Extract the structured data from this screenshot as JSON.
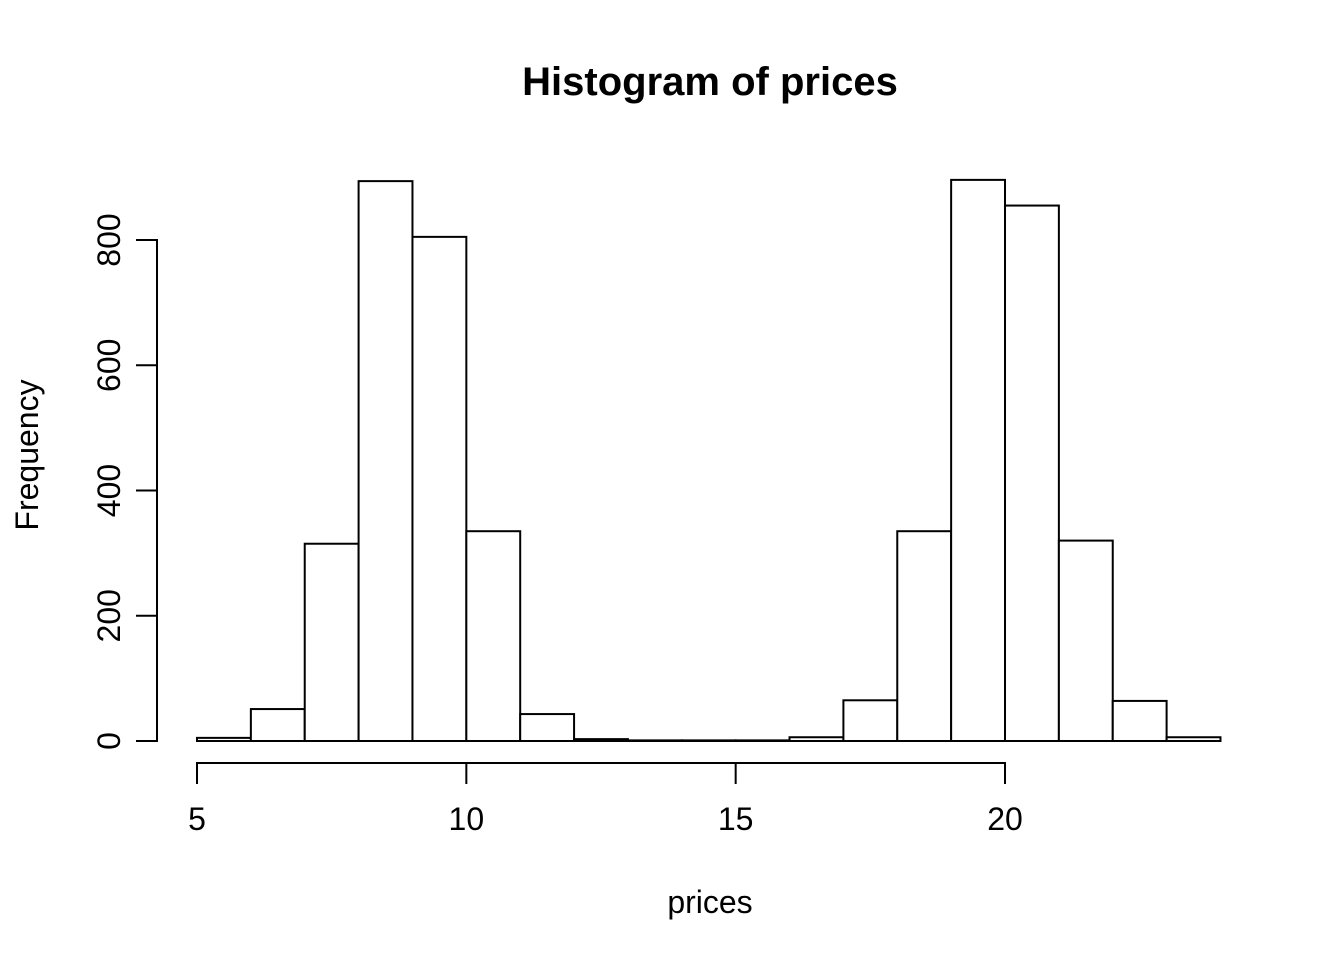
{
  "figure": {
    "background_color": "#ffffff",
    "stroke_color": "#000000",
    "bar_fill_color": "#ffffff"
  },
  "chart_data": {
    "type": "bar",
    "subtype": "histogram",
    "title": "Histogram of prices",
    "xlabel": "prices",
    "ylabel": "Frequency",
    "bin_edges": [
      5,
      6,
      7,
      8,
      9,
      10,
      11,
      12,
      13,
      14,
      15,
      16,
      17,
      18,
      19,
      20,
      21,
      22,
      23,
      24
    ],
    "counts": [
      5,
      51,
      315,
      894,
      805,
      335,
      43,
      3,
      1,
      1,
      1,
      6,
      65,
      335,
      896,
      855,
      320,
      64,
      6
    ],
    "x_ticks": [
      5,
      10,
      15,
      20
    ],
    "y_ticks": [
      0,
      200,
      400,
      600,
      800
    ],
    "xlim": [
      5,
      24
    ],
    "ylim": [
      0,
      896
    ],
    "grid": false,
    "legend": false,
    "bar_outline": "#000000",
    "bar_fill": "#ffffff",
    "distribution_note": "bimodal"
  }
}
